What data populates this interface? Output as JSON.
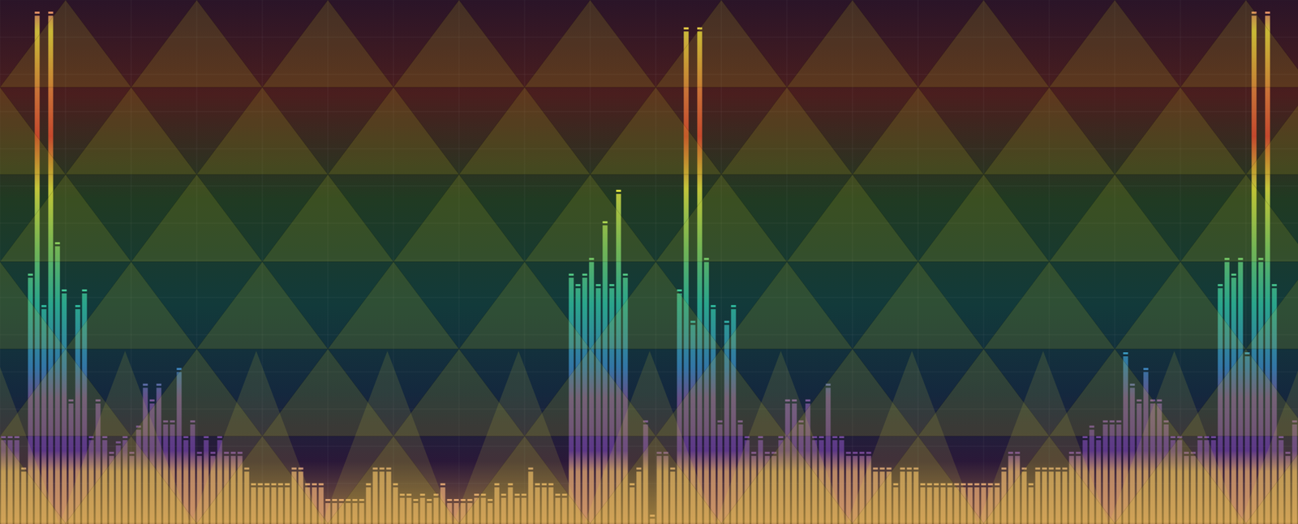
{
  "chart_data": {
    "type": "bar",
    "ylim": [
      0,
      100
    ],
    "tick_labels": false,
    "values": [
      16,
      16,
      16,
      10,
      47,
      97,
      41,
      97,
      53,
      44,
      23,
      41,
      44,
      16,
      23,
      16,
      13,
      15,
      16,
      13,
      18,
      26,
      23,
      26,
      19,
      19,
      29,
      16,
      19,
      13,
      16,
      13,
      16,
      13,
      13,
      13,
      10,
      7,
      7,
      7,
      7,
      7,
      7,
      10,
      10,
      7,
      7,
      7,
      4,
      4,
      4,
      4,
      4,
      4,
      7,
      10,
      10,
      10,
      7,
      5,
      5,
      4,
      5,
      4,
      5,
      7,
      4,
      4,
      4,
      4,
      5,
      5,
      4,
      7,
      5,
      7,
      5,
      5,
      10,
      7,
      7,
      7,
      5,
      5,
      47,
      45,
      47,
      50,
      45,
      57,
      45,
      63,
      47,
      7,
      10,
      19,
      1,
      13,
      13,
      10,
      44,
      94,
      38,
      94,
      50,
      41,
      19,
      38,
      41,
      19,
      16,
      13,
      16,
      13,
      13,
      16,
      23,
      23,
      19,
      23,
      16,
      16,
      26,
      16,
      16,
      13,
      13,
      13,
      13,
      10,
      10,
      10,
      7,
      10,
      10,
      10,
      7,
      7,
      7,
      7,
      7,
      7,
      7,
      7,
      7,
      7,
      7,
      7,
      10,
      13,
      13,
      10,
      7,
      10,
      10,
      10,
      10,
      10,
      13,
      13,
      16,
      18,
      16,
      19,
      19,
      19,
      32,
      26,
      23,
      29,
      23,
      23,
      19,
      16,
      16,
      13,
      13,
      16,
      16,
      16,
      45,
      50,
      47,
      50,
      32,
      97,
      50,
      97,
      45,
      16,
      13,
      19
    ]
  }
}
